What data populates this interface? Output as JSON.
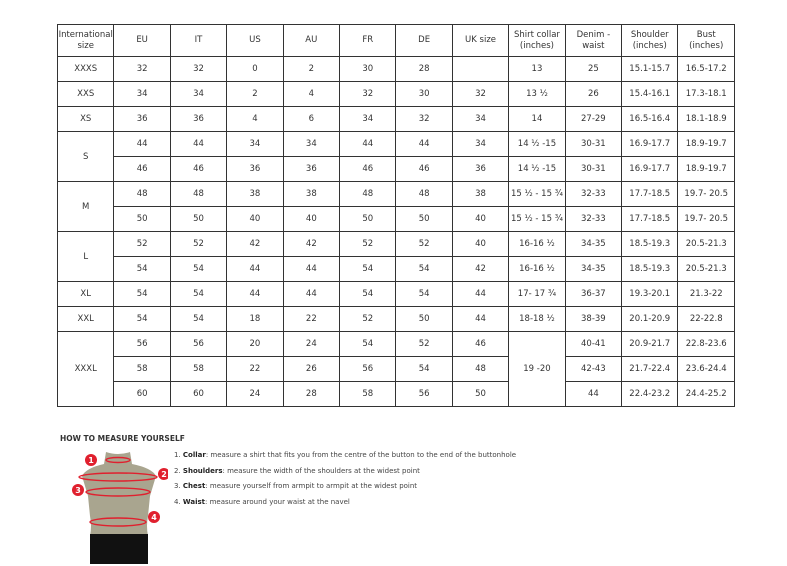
{
  "table": {
    "headers": [
      "International size",
      "EU",
      "IT",
      "US",
      "AU",
      "FR",
      "DE",
      "UK size",
      "Shirt collar (inches)",
      "Denim - waist",
      "Shoulder (inches)",
      "Bust (inches)"
    ],
    "groups": [
      {
        "intl": "XXXS",
        "rows": [
          [
            "32",
            "32",
            "0",
            "2",
            "30",
            "28",
            "",
            "13",
            "25",
            "15.1-15.7",
            "16.5-17.2"
          ]
        ]
      },
      {
        "intl": "XXS",
        "rows": [
          [
            "34",
            "34",
            "2",
            "4",
            "32",
            "30",
            "32",
            "13 ½",
            "26",
            "15.4-16.1",
            "17.3-18.1"
          ]
        ]
      },
      {
        "intl": "XS",
        "rows": [
          [
            "36",
            "36",
            "4",
            "6",
            "34",
            "32",
            "34",
            "14",
            "27-29",
            "16.5-16.4",
            "18.1-18.9"
          ]
        ]
      },
      {
        "intl": "S",
        "rows": [
          [
            "44",
            "44",
            "34",
            "34",
            "44",
            "44",
            "34",
            "14 ½ -15",
            "30-31",
            "16.9-17.7",
            "18.9-19.7"
          ],
          [
            "46",
            "46",
            "36",
            "36",
            "46",
            "46",
            "36",
            "14 ½ -15",
            "30-31",
            "16.9-17.7",
            "18.9-19.7"
          ]
        ]
      },
      {
        "intl": "M",
        "rows": [
          [
            "48",
            "48",
            "38",
            "38",
            "48",
            "48",
            "38",
            "15 ½ - 15 ¾",
            "32-33",
            "17.7-18.5",
            "19.7- 20.5"
          ],
          [
            "50",
            "50",
            "40",
            "40",
            "50",
            "50",
            "40",
            "15 ½ - 15 ¾",
            "32-33",
            "17.7-18.5",
            "19.7- 20.5"
          ]
        ]
      },
      {
        "intl": "L",
        "rows": [
          [
            "52",
            "52",
            "42",
            "42",
            "52",
            "52",
            "40",
            "16-16 ½",
            "34-35",
            "18.5-19.3",
            "20.5-21.3"
          ],
          [
            "54",
            "54",
            "44",
            "44",
            "54",
            "54",
            "42",
            "16-16 ½",
            "34-35",
            "18.5-19.3",
            "20.5-21.3"
          ]
        ]
      },
      {
        "intl": "XL",
        "rows": [
          [
            "54",
            "54",
            "44",
            "44",
            "54",
            "54",
            "44",
            "17- 17 ¾",
            "36-37",
            "19.3-20.1",
            "21.3-22"
          ]
        ]
      },
      {
        "intl": "XXL",
        "rows": [
          [
            "54",
            "54",
            "18",
            "22",
            "52",
            "50",
            "44",
            "18-18 ½",
            "38-39",
            "20.1-20.9",
            "22-22.8"
          ]
        ]
      },
      {
        "intl": "XXXL",
        "collar": "19 -20",
        "rows": [
          [
            "56",
            "56",
            "20",
            "24",
            "54",
            "52",
            "46",
            null,
            "40-41",
            "20.9-21.7",
            "22.8-23.6"
          ],
          [
            "58",
            "58",
            "22",
            "26",
            "56",
            "54",
            "48",
            null,
            "42-43",
            "21.7-22.4",
            "23.6-24.4"
          ],
          [
            "60",
            "60",
            "24",
            "28",
            "58",
            "56",
            "50",
            null,
            "44",
            "22.4-23.2",
            "24.4-25.2"
          ]
        ]
      }
    ]
  },
  "measure": {
    "title": "HOW TO MEASURE YOURSELF",
    "steps": [
      {
        "num": "1.",
        "term": "Collar",
        "text": ": measure a shirt that fits you from the centre of the button to the end of the buttonhole"
      },
      {
        "num": "2.",
        "term": "Shoulders",
        "text": ": measure the width of the shoulders at the widest point"
      },
      {
        "num": "3.",
        "term": "Chest",
        "text": ": measure yourself from armpit to armpit at the widest point"
      },
      {
        "num": "4.",
        "term": "Waist",
        "text": ": measure around your waist at the navel"
      }
    ],
    "markers": [
      "1",
      "2",
      "3",
      "4"
    ],
    "accent": "#e0202e"
  }
}
